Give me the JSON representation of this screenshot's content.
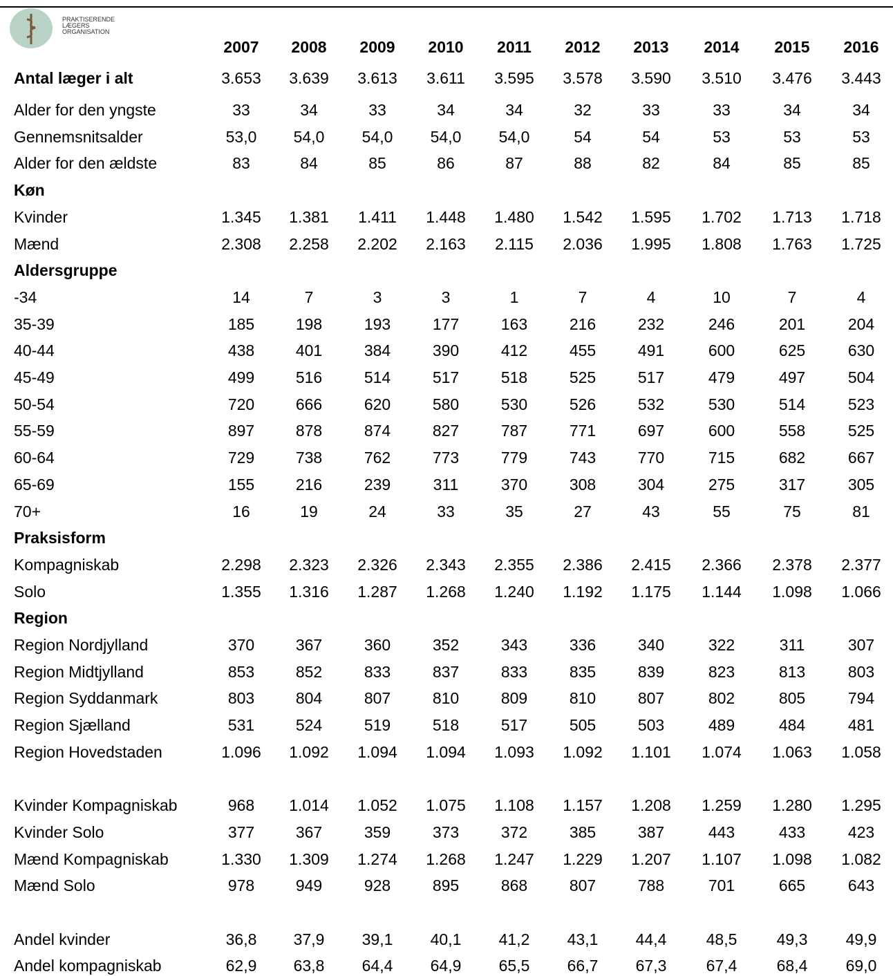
{
  "logo": {
    "text": [
      "PRAKTISERENDE",
      "LÆGERS",
      "ORGANISATION"
    ]
  },
  "table": {
    "columns": [
      "2007",
      "2008",
      "2009",
      "2010",
      "2011",
      "2012",
      "2013",
      "2014",
      "2015",
      "2016"
    ],
    "blocks": [
      [
        {
          "label": "Antal læger i alt",
          "bold": true,
          "values": [
            "3.653",
            "3.639",
            "3.613",
            "3.611",
            "3.595",
            "3.578",
            "3.590",
            "3.510",
            "3.476",
            "3.443"
          ]
        }
      ],
      [
        {
          "label": "Alder for den yngste",
          "values": [
            "33",
            "34",
            "33",
            "34",
            "34",
            "32",
            "33",
            "33",
            "34",
            "34"
          ]
        },
        {
          "label": "Gennemsnitsalder",
          "values": [
            "53,0",
            "54,0",
            "54,0",
            "54,0",
            "54,0",
            "54",
            "54",
            "53",
            "53",
            "53"
          ]
        },
        {
          "label": "Alder for den ældste",
          "values": [
            "83",
            "84",
            "85",
            "86",
            "87",
            "88",
            "82",
            "84",
            "85",
            "85"
          ]
        },
        {
          "label": "Køn",
          "bold": true
        },
        {
          "label": "Kvinder",
          "values": [
            "1.345",
            "1.381",
            "1.411",
            "1.448",
            "1.480",
            "1.542",
            "1.595",
            "1.702",
            "1.713",
            "1.718"
          ]
        },
        {
          "label": "Mænd",
          "values": [
            "2.308",
            "2.258",
            "2.202",
            "2.163",
            "2.115",
            "2.036",
            "1.995",
            "1.808",
            "1.763",
            "1.725"
          ]
        },
        {
          "label": "Aldersgruppe",
          "bold": true
        },
        {
          "label": "-34",
          "values": [
            "14",
            "7",
            "3",
            "3",
            "1",
            "7",
            "4",
            "10",
            "7",
            "4"
          ]
        },
        {
          "label": "35-39",
          "values": [
            "185",
            "198",
            "193",
            "177",
            "163",
            "216",
            "232",
            "246",
            "201",
            "204"
          ]
        },
        {
          "label": "40-44",
          "values": [
            "438",
            "401",
            "384",
            "390",
            "412",
            "455",
            "491",
            "600",
            "625",
            "630"
          ]
        },
        {
          "label": "45-49",
          "values": [
            "499",
            "516",
            "514",
            "517",
            "518",
            "525",
            "517",
            "479",
            "497",
            "504"
          ]
        },
        {
          "label": "50-54",
          "values": [
            "720",
            "666",
            "620",
            "580",
            "530",
            "526",
            "532",
            "530",
            "514",
            "523"
          ]
        },
        {
          "label": "55-59",
          "values": [
            "897",
            "878",
            "874",
            "827",
            "787",
            "771",
            "697",
            "600",
            "558",
            "525"
          ]
        },
        {
          "label": "60-64",
          "values": [
            "729",
            "738",
            "762",
            "773",
            "779",
            "743",
            "770",
            "715",
            "682",
            "667"
          ]
        },
        {
          "label": "65-69",
          "values": [
            "155",
            "216",
            "239",
            "311",
            "370",
            "308",
            "304",
            "275",
            "317",
            "305"
          ]
        },
        {
          "label": "70+",
          "values": [
            "16",
            "19",
            "24",
            "33",
            "35",
            "27",
            "43",
            "55",
            "75",
            "81"
          ]
        },
        {
          "label": "Praksisform",
          "bold": true
        },
        {
          "label": "Kompagniskab",
          "values": [
            "2.298",
            "2.323",
            "2.326",
            "2.343",
            "2.355",
            "2.386",
            "2.415",
            "2.366",
            "2.378",
            "2.377"
          ]
        },
        {
          "label": "Solo",
          "values": [
            "1.355",
            "1.316",
            "1.287",
            "1.268",
            "1.240",
            "1.192",
            "1.175",
            "1.144",
            "1.098",
            "1.066"
          ]
        },
        {
          "label": "Region",
          "bold": true
        },
        {
          "label": "Region Nordjylland",
          "values": [
            "370",
            "367",
            "360",
            "352",
            "343",
            "336",
            "340",
            "322",
            "311",
            "307"
          ]
        },
        {
          "label": "Region Midtjylland",
          "values": [
            "853",
            "852",
            "833",
            "837",
            "833",
            "835",
            "839",
            "823",
            "813",
            "803"
          ]
        },
        {
          "label": "Region Syddanmark",
          "values": [
            "803",
            "804",
            "807",
            "810",
            "809",
            "810",
            "807",
            "802",
            "805",
            "794"
          ]
        },
        {
          "label": "Region Sjælland",
          "values": [
            "531",
            "524",
            "519",
            "518",
            "517",
            "505",
            "503",
            "489",
            "484",
            "481"
          ]
        },
        {
          "label": "Region Hovedstaden",
          "values": [
            "1.096",
            "1.092",
            "1.094",
            "1.094",
            "1.093",
            "1.092",
            "1.101",
            "1.074",
            "1.063",
            "1.058"
          ]
        }
      ],
      [
        {
          "label": "Kvinder Kompagniskab",
          "values": [
            "968",
            "1.014",
            "1.052",
            "1.075",
            "1.108",
            "1.157",
            "1.208",
            "1.259",
            "1.280",
            "1.295"
          ]
        },
        {
          "label": "Kvinder Solo",
          "values": [
            "377",
            "367",
            "359",
            "373",
            "372",
            "385",
            "387",
            "443",
            "433",
            "423"
          ]
        },
        {
          "label": "Mænd Kompagniskab",
          "values": [
            "1.330",
            "1.309",
            "1.274",
            "1.268",
            "1.247",
            "1.229",
            "1.207",
            "1.107",
            "1.098",
            "1.082"
          ]
        },
        {
          "label": "Mænd Solo",
          "values": [
            "978",
            "949",
            "928",
            "895",
            "868",
            "807",
            "788",
            "701",
            "665",
            "643"
          ]
        }
      ],
      [
        {
          "label": "Andel kvinder",
          "values": [
            "36,8",
            "37,9",
            "39,1",
            "40,1",
            "41,2",
            "43,1",
            "44,4",
            "48,5",
            "49,3",
            "49,9"
          ]
        },
        {
          "label": "Andel kompagniskab",
          "values": [
            "62,9",
            "63,8",
            "64,4",
            "64,9",
            "65,5",
            "66,7",
            "67,3",
            "67,4",
            "68,4",
            "69,0"
          ]
        }
      ]
    ]
  }
}
